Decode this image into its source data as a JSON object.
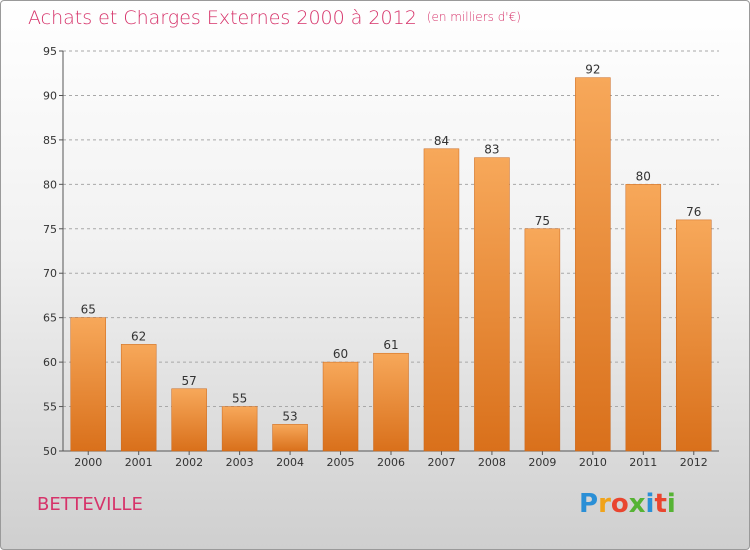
{
  "header": {
    "title": "Achats et Charges Externes 2000 à 2012",
    "subtitle": "(en milliers d'€)"
  },
  "footer": {
    "commune": "BETTEVILLE",
    "logo_letters": [
      "P",
      "r",
      "o",
      "x",
      "i",
      "t",
      "i"
    ],
    "logo_colors": [
      "#2a8fd6",
      "#f0a31a",
      "#e9452f",
      "#56b334",
      "#2a8fd6",
      "#e9452f",
      "#56b334"
    ]
  },
  "colors": {
    "title": "#d6336a",
    "bar_light": "#f7a85a",
    "bar_dark": "#d9701b",
    "grid": "#a8a8a8"
  },
  "chart_data": {
    "type": "bar",
    "title": "Achats et Charges Externes 2000 à 2012",
    "subtitle": "(en milliers d'€)",
    "categories": [
      "2000",
      "2001",
      "2002",
      "2003",
      "2004",
      "2005",
      "2006",
      "2007",
      "2008",
      "2009",
      "2010",
      "2011",
      "2012"
    ],
    "values": [
      65,
      62,
      57,
      55,
      53,
      60,
      61,
      84,
      83,
      75,
      92,
      80,
      76
    ],
    "ylim": [
      50,
      95
    ],
    "yticks": [
      50,
      55,
      60,
      65,
      70,
      75,
      80,
      85,
      90,
      95
    ],
    "grid": "horizontal-dashed",
    "data_labels": true
  }
}
